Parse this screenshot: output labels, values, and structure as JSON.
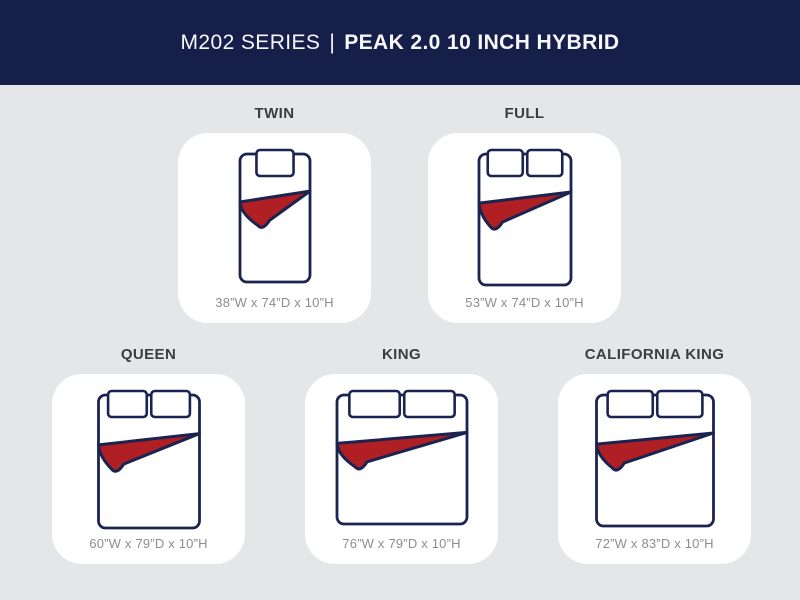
{
  "header": {
    "series": "M202 SERIES",
    "separator": "|",
    "model": "PEAK 2.0 10 INCH HYBRID"
  },
  "colors": {
    "header_bg": "#161f4a",
    "board_bg": "#e4e6e7",
    "card_bg": "#ffffff",
    "outline_navy": "#1b2350",
    "blanket_red": "#b01f24",
    "label_text": "#3d3d3d",
    "dims_text": "#8d8d8e",
    "header_text": "#f7f8fa"
  },
  "sizes": [
    {
      "id": "twin",
      "label": "TWIN",
      "dimensions": "38”W x 74”D x 10”H",
      "illustration": {
        "pillows": 1,
        "mattress_w": 70,
        "mattress_h": 128
      }
    },
    {
      "id": "full",
      "label": "FULL",
      "dimensions": "53”W x 74”D x 10”H",
      "illustration": {
        "pillows": 2,
        "mattress_w": 92,
        "mattress_h": 131
      }
    },
    {
      "id": "queen",
      "label": "QUEEN",
      "dimensions": "60”W x 79”D x 10”H",
      "illustration": {
        "pillows": 2,
        "mattress_w": 101,
        "mattress_h": 133
      }
    },
    {
      "id": "king",
      "label": "KING",
      "dimensions": "76”W x 79”D x 10”H",
      "illustration": {
        "pillows": 2,
        "mattress_w": 130,
        "mattress_h": 129
      }
    },
    {
      "id": "california-king",
      "label": "CALIFORNIA KING",
      "dimensions": "72”W x 83”D x 10”H",
      "illustration": {
        "pillows": 2,
        "mattress_w": 117,
        "mattress_h": 131
      }
    }
  ]
}
